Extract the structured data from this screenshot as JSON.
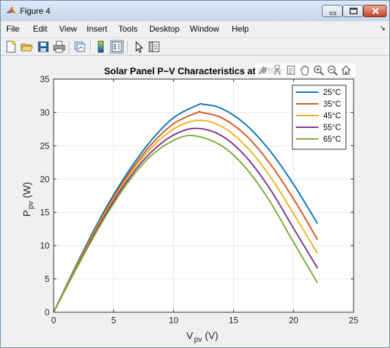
{
  "window": {
    "title": "Figure 4",
    "icon": "matlab-icon",
    "buttons": [
      "minimize-icon",
      "maximize-icon",
      "close-icon"
    ]
  },
  "menubar": {
    "items": [
      "File",
      "Edit",
      "View",
      "Insert",
      "Tools",
      "Desktop",
      "Window",
      "Help"
    ],
    "overflow_icon": "dock-arrow-icon"
  },
  "toolbar": {
    "icons": [
      "new-figure-icon",
      "open-file-icon",
      "save-icon",
      "print-icon",
      "link-plot-icon",
      "insert-colorbar-icon",
      "insert-legend-icon",
      "edit-plot-icon",
      "property-inspector-icon"
    ]
  },
  "axes_toolbar": {
    "icons": [
      "brush-icon",
      "data-tips-icon",
      "export-icon",
      "pan-icon",
      "zoom-in-icon",
      "zoom-out-icon",
      "home-icon"
    ]
  },
  "chart_data": {
    "type": "line",
    "title": "Solar Panel P−V Characteristics at Differ",
    "xlabel_main": "V",
    "xlabel_sub": "pv",
    "xlabel_unit": " (V)",
    "ylabel_main": "P",
    "ylabel_sub": "pv",
    "ylabel_unit": " (W)",
    "xlim": [
      0,
      25
    ],
    "ylim": [
      0,
      35
    ],
    "xticks": [
      0,
      5,
      10,
      15,
      20,
      25
    ],
    "yticks": [
      0,
      5,
      10,
      15,
      20,
      25,
      30,
      35
    ],
    "grid": true,
    "legend_position": "top-right",
    "series": [
      {
        "name": "25°C",
        "color": "#0072bd",
        "x": [
          0,
          2,
          4,
          6,
          8,
          10,
          12,
          12.5,
          14,
          16,
          18,
          20,
          22
        ],
        "y": [
          0,
          7.5,
          14.5,
          20.5,
          25.5,
          29.2,
          31.1,
          31.2,
          30.6,
          28.2,
          24.3,
          19.2,
          13.3
        ]
      },
      {
        "name": "35°C",
        "color": "#d95319",
        "x": [
          0,
          2,
          4,
          6,
          8,
          10,
          12,
          12.3,
          14,
          16,
          18,
          20,
          22
        ],
        "y": [
          0,
          7.3,
          14.2,
          20.1,
          24.9,
          28.3,
          30.0,
          30.0,
          29.2,
          26.6,
          22.4,
          17.0,
          10.9
        ]
      },
      {
        "name": "45°C",
        "color": "#edb120",
        "x": [
          0,
          2,
          4,
          6,
          8,
          10,
          12,
          14,
          16,
          18,
          20,
          22
        ],
        "y": [
          0,
          7.2,
          14.0,
          19.8,
          24.4,
          27.5,
          28.8,
          27.9,
          25.0,
          20.5,
          14.8,
          8.8
        ]
      },
      {
        "name": "55°C",
        "color": "#7e2f8e",
        "x": [
          0,
          2,
          4,
          6,
          8,
          10,
          11.9,
          14,
          16,
          18,
          20,
          22
        ],
        "y": [
          0,
          7.0,
          13.7,
          19.4,
          23.8,
          26.6,
          27.6,
          26.5,
          23.4,
          18.6,
          12.6,
          6.6
        ]
      },
      {
        "name": "65°C",
        "color": "#77ac30",
        "x": [
          0,
          2,
          4,
          6,
          8,
          10,
          11.7,
          14,
          16,
          18,
          20,
          22
        ],
        "y": [
          0,
          6.9,
          13.4,
          19.0,
          23.3,
          25.8,
          26.5,
          25.0,
          21.7,
          16.7,
          10.5,
          4.4
        ]
      }
    ]
  }
}
